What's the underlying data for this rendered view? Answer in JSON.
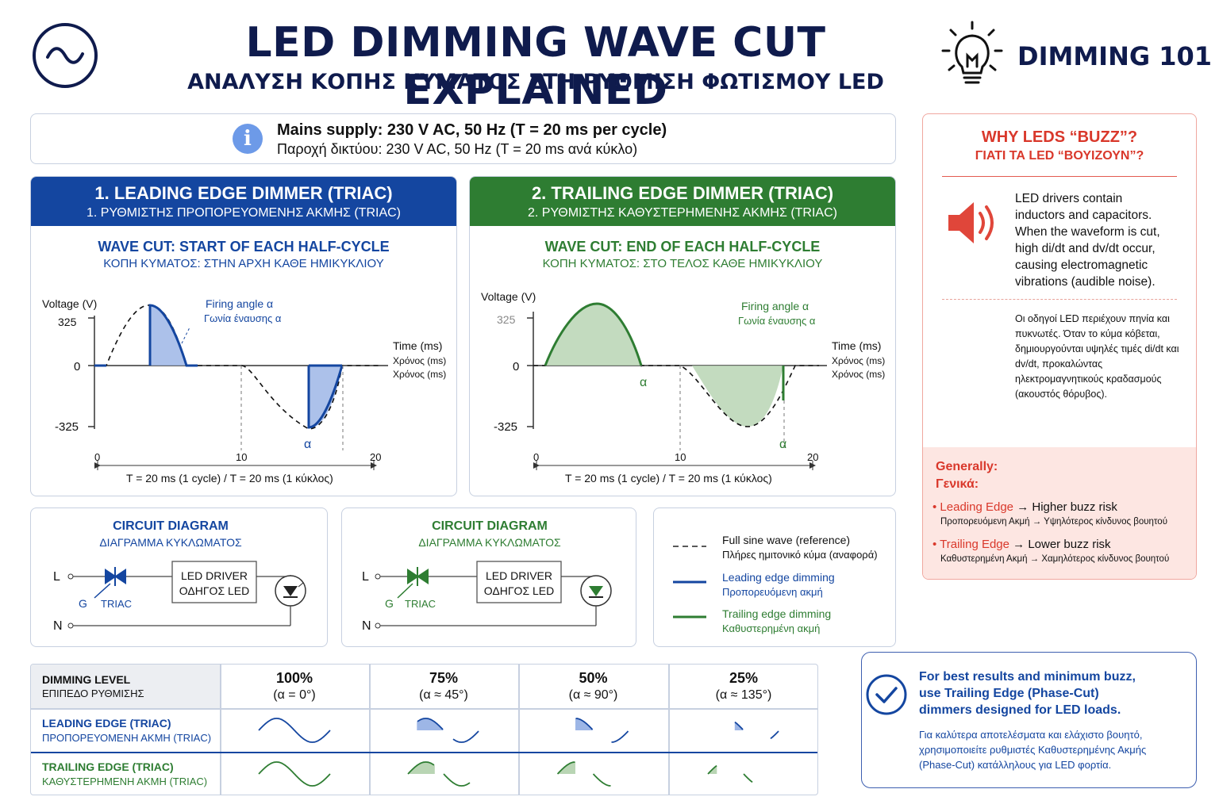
{
  "header": {
    "title": "LED DIMMING WAVE CUT EXPLAINED",
    "subtitle": "ΑΝΑΛΥΣΗ ΚΟΠΗΣ ΚΥΜΑΤΟΣ ΣΤΗ ΡΥΘΜΙΣΗ ΦΩΤΙΣΜΟΥ LED",
    "badge": "DIMMING 101",
    "left_icon": "sine-wave-icon",
    "right_icon": "lightbulb-icon"
  },
  "supply": {
    "icon": "info-icon",
    "en": "Mains supply: 230 V AC, 50 Hz (T = 20 ms per cycle)",
    "gr": "Παροχή δικτύου: 230 V AC, 50 Hz (T = 20 ms ανά κύκλο)"
  },
  "leading": {
    "header_en": "1. LEADING EDGE DIMMER (TRIAC)",
    "header_gr": "1. ΡΥΘΜΙΣΤΗΣ ΠΡΟΠΟΡΕΥΟΜΕΝΗΣ ΑΚΜΗΣ (TRIAC)",
    "cut_en": "WAVE CUT: START OF EACH HALF-CYCLE",
    "cut_gr": "ΚΟΠΗ ΚΥΜΑΤΟΣ: ΣΤΗΝ ΑΡΧΗ ΚΑΘΕ ΗΜΙΚΥΚΛΙΟΥ",
    "ylabel": "Voltage (V)",
    "ypeak": "325",
    "yzero": "0",
    "yneg": "-325",
    "firing_en": "Firing angle α",
    "firing_gr": "Γωνία έναυσης α",
    "time_en": "Time (ms)",
    "time_gr": "Χρόνος (ms)",
    "time_gr2": "Χρόνος (ms)",
    "alpha": "α",
    "x0": "0",
    "x10": "10",
    "x20": "20",
    "period": "T = 20 ms (1 cycle)  /  T = 20 ms (1 κύκλος)"
  },
  "trailing": {
    "header_en": "2. TRAILING EDGE DIMMER (TRIAC)",
    "header_gr": "2. ΡΥΘΜΙΣΤΗΣ ΚΑΘΥΣΤΕΡΗΜΕΝΗΣ ΑΚΜΗΣ (TRIAC)",
    "cut_en": "WAVE CUT: END OF EACH HALF-CYCLE",
    "cut_gr": "ΚΟΠΗ ΚΥΜΑΤΟΣ: ΣΤΟ ΤΕΛΟΣ ΚΑΘΕ ΗΜΙΚΥΚΛΙΟΥ",
    "ylabel": "Voltage (V)",
    "ypeak": "325",
    "yzero": "0",
    "yneg": "-325",
    "firing_en": "Firing angle α",
    "firing_gr": "Γωνία έναυσης α",
    "time_en": "Time (ms)",
    "time_gr": "Χρόνος (ms)",
    "time_gr2": "Χρόνος (ms)",
    "alpha": "α",
    "x0": "0",
    "x10": "10",
    "x20": "20",
    "period": "T = 20 ms (1 cycle)  /  T = 20 ms (1 κύκλος)"
  },
  "circuit_left": {
    "title_en": "CIRCUIT DIAGRAM",
    "title_gr": "ΔΙΑΓΡΑΜΜΑ ΚΥΚΛΩΜΑΤΟΣ",
    "L": "L",
    "N": "N",
    "G": "G",
    "triac": "TRIAC",
    "driver_en": "LED DRIVER",
    "driver_gr": "ΟΔΗΓΟΣ LED"
  },
  "circuit_right": {
    "title_en": "CIRCUIT DIAGRAM",
    "title_gr": "ΔΙΑΓΡΑΜΜΑ ΚΥΚΛΩΜΑΤΟΣ",
    "L": "L",
    "N": "N",
    "G": "G",
    "triac": "TRIAC",
    "driver_en": "LED DRIVER",
    "driver_gr": "ΟΔΗΓΟΣ LED"
  },
  "legend": {
    "items": [
      {
        "en": "Full sine wave (reference)",
        "gr": "Πλήρες ημιτονικό κύμα (αναφορά)",
        "color": "#222222"
      },
      {
        "en": "Leading edge dimming",
        "gr": "Προπορευόμενη ακμή",
        "color": "#1446a0"
      },
      {
        "en": "Trailing edge dimming",
        "gr": "Καθυστερημένη ακμή",
        "color": "#2e7d32"
      }
    ]
  },
  "buzz": {
    "title_en": "WHY LEDS “BUZZ”?",
    "title_gr": "ΓΙΑΤΙ ΤΑ LED “ΒΟΥΙΖΟΥΝ”?",
    "icon": "speaker-icon",
    "text_en": "LED drivers contain inductors and capacitors. When the waveform is cut, high di/dt and dv/dt occur, causing electromagnetic vibrations (audible noise).",
    "text_gr": "Οι οδηγοί LED περιέχουν πηνία και πυκνωτές. Όταν το κύμα κόβεται, δημιουργούνται υψηλές τιμές di/dt και dv/dt, προκαλώντας ηλεκτρομαγνητικούς κραδασμούς (ακουστός θόρυβος).",
    "generally_en": "Generally:",
    "generally_gr": "Γενικά:",
    "leading_key": "Leading Edge",
    "leading_val": "→ Higher buzz risk",
    "leading_gr": "Προπορευόμενη Ακμή → Υψηλότερος κίνδυνος βουητού",
    "trailing_key": "Trailing Edge",
    "trailing_val": "→ Lower buzz risk",
    "trailing_gr": "Καθυστερημένη Ακμή → Χαμηλότερος κίνδυνος βουητού"
  },
  "table": {
    "header_en": "DIMMING LEVEL",
    "header_gr": "ΕΠΙΠΕΔΟ ΡΥΘΜΙΣΗΣ",
    "levels": [
      {
        "pct": "100%",
        "angle": "(α = 0°)",
        "alpha_deg": 0
      },
      {
        "pct": "75%",
        "angle": "(α ≈ 45°)",
        "alpha_deg": 45
      },
      {
        "pct": "50%",
        "angle": "(α ≈ 90°)",
        "alpha_deg": 90
      },
      {
        "pct": "25%",
        "angle": "(α ≈ 135°)",
        "alpha_deg": 135
      }
    ],
    "row1_en": "LEADING EDGE (TRIAC)",
    "row1_gr": "ΠΡΟΠΟΡΕΥΟΜΕΝΗ ΑΚΜΗ (TRIAC)",
    "row2_en": "TRAILING EDGE (TRIAC)",
    "row2_gr": "ΚΑΘΥΣΤΕΡΗΜΕΝΗ ΑΚΜΗ (TRIAC)"
  },
  "tip": {
    "icon": "checkmark-icon",
    "en": "For best results and minimum buzz, use Trailing Edge (Phase-Cut) dimmers designed for LED loads.",
    "gr": "Για καλύτερα αποτελέσματα και ελάχιστο βουητό, χρησιμοποιείτε ρυθμιστές Καθυστερημένης Ακμής (Phase-Cut) κατάλληλους για LED φορτία."
  },
  "colors": {
    "navy": "#0f1b4d",
    "blue": "#1446a0",
    "green": "#2e7d32",
    "red": "#d9382b",
    "blue_fill": "#9db6e6",
    "green_fill": "#b9d5b4",
    "pink_bg": "#fde6e2"
  }
}
